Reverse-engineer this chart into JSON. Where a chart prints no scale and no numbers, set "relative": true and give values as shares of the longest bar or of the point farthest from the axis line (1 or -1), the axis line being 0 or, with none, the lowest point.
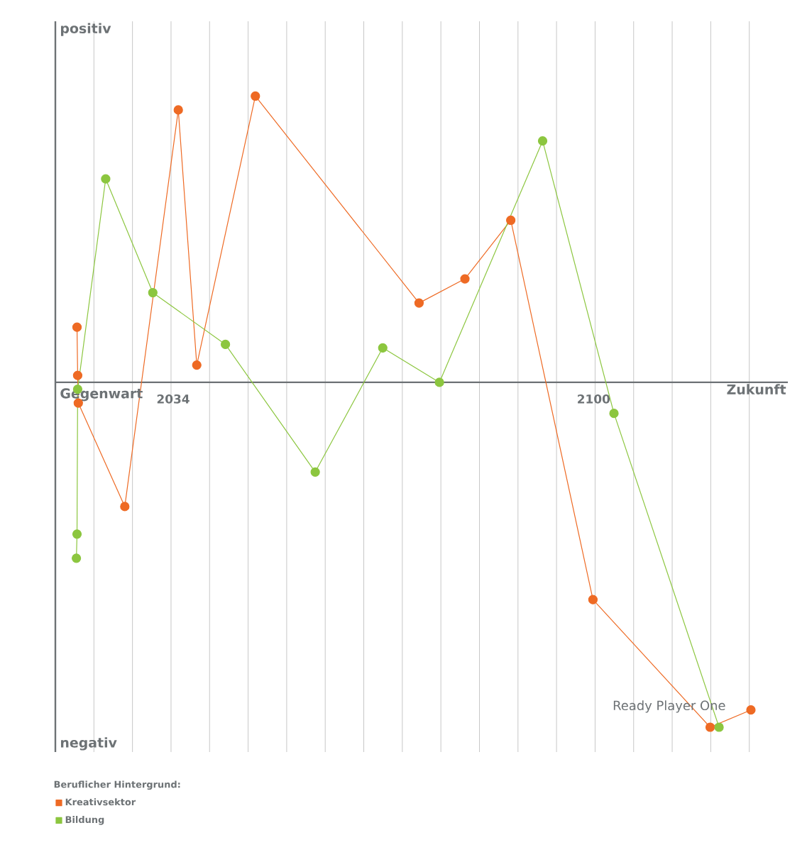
{
  "chart_data": {
    "type": "line",
    "relative": true,
    "xlabel": "Zukunft",
    "ylabel": "positiv",
    "legend_title": "Beruflicher Hintergrund:",
    "legend": "bottom left",
    "grid": true,
    "marker": "circle",
    "line_style": "solid",
    "xlim": [
      2015.5,
      2130.5
    ],
    "xticks": [
      2034,
      2100
    ],
    "annotations": [
      "negativ",
      "Gegenwart",
      {
        "text": "Ready Player One",
        "x": 2119,
        "y": -1.0
      }
    ],
    "series": [
      {
        "name": "Kreativsektor",
        "color": "#ee6a24",
        "x": [
          2018.9,
          2019.0,
          2019.1,
          2026.4,
          2034.8,
          2037.7,
          2046.9,
          2072.6,
          2079.8,
          2087.0,
          2099.9,
          2118.3,
          2124.7
        ],
        "values": [
          0.16,
          0.02,
          -0.06,
          -0.36,
          0.79,
          0.05,
          0.83,
          0.23,
          0.3,
          0.47,
          -0.63,
          -1.0,
          -0.95
        ]
      },
      {
        "name": "Bildung",
        "color": "#8cc63f",
        "x": [
          2018.8,
          2018.9,
          2019.0,
          2023.4,
          2030.8,
          2042.2,
          2056.3,
          2066.9,
          2075.8,
          2092.0,
          2103.2,
          2119.7
        ],
        "values": [
          -0.51,
          -0.44,
          -0.02,
          0.59,
          0.26,
          0.11,
          -0.26,
          0.1,
          0.0,
          0.7,
          -0.09,
          -1.0
        ]
      }
    ]
  }
}
